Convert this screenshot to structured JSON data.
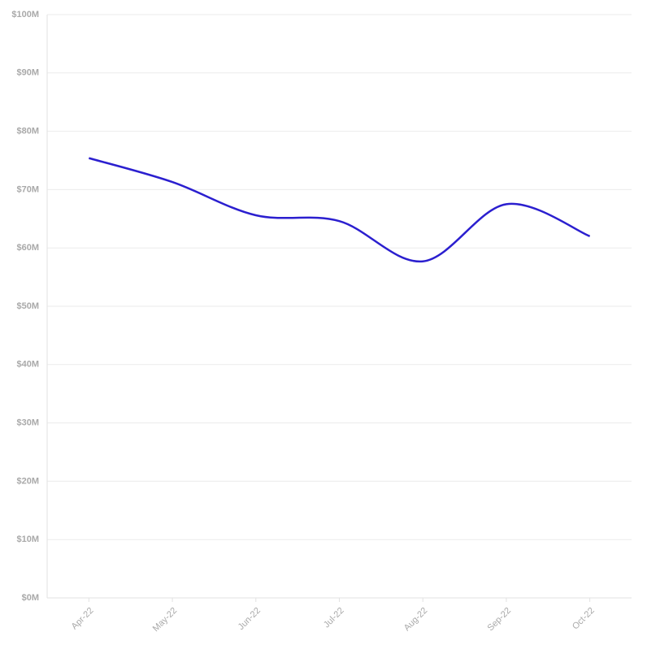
{
  "chart_data": {
    "type": "line",
    "categories": [
      "Apr-22",
      "May-22",
      "Jun-22",
      "Jul-22",
      "Aug-22",
      "Sep-22",
      "Oct-22"
    ],
    "values": [
      75.4,
      71.3,
      65.6,
      64.6,
      57.7,
      67.5,
      62.0
    ],
    "color": "#2b1fcf",
    "ylim": [
      0,
      100
    ],
    "yticks": [
      {
        "value": 0,
        "label": "$0M"
      },
      {
        "value": 10,
        "label": "$10M"
      },
      {
        "value": 20,
        "label": "$20M"
      },
      {
        "value": 30,
        "label": "$30M"
      },
      {
        "value": 40,
        "label": "$40M"
      },
      {
        "value": 50,
        "label": "$50M"
      },
      {
        "value": 60,
        "label": "$60M"
      },
      {
        "value": 70,
        "label": "$70M"
      },
      {
        "value": 80,
        "label": "$80M"
      },
      {
        "value": 90,
        "label": "$90M"
      },
      {
        "value": 100,
        "label": "$100M"
      }
    ],
    "grid": true
  }
}
